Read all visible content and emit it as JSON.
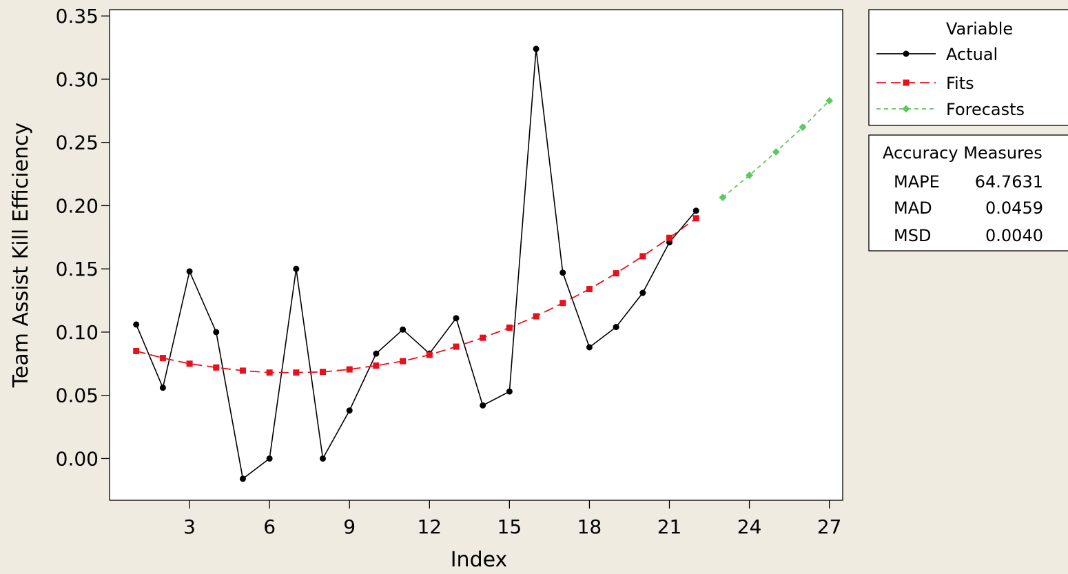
{
  "chart_data": {
    "type": "line",
    "xlabel": "Index",
    "ylabel": "Team Assist Kill Efficiency",
    "xlim": [
      0,
      27.5
    ],
    "ylim": [
      -0.033,
      0.355
    ],
    "x_ticks": [
      3,
      6,
      9,
      12,
      15,
      18,
      21,
      24,
      27
    ],
    "y_ticks": [
      0.0,
      0.05,
      0.1,
      0.15,
      0.2,
      0.25,
      0.3,
      0.35
    ],
    "y_tick_labels": [
      "0.00",
      "0.05",
      "0.10",
      "0.15",
      "0.20",
      "0.25",
      "0.30",
      "0.35"
    ],
    "grid": false,
    "legend": {
      "title": "Variable",
      "placement": "right-top",
      "entries": [
        "Actual",
        "Fits",
        "Forecasts"
      ]
    },
    "series": [
      {
        "name": "Actual",
        "color": "#000000",
        "style": "solid",
        "marker": "circle",
        "x": [
          1,
          2,
          3,
          4,
          5,
          6,
          7,
          8,
          9,
          10,
          11,
          12,
          13,
          14,
          15,
          16,
          17,
          18,
          19,
          20,
          21,
          22
        ],
        "values": [
          0.106,
          0.056,
          0.148,
          0.1,
          -0.016,
          0.0,
          0.15,
          0.0,
          0.038,
          0.083,
          0.102,
          0.083,
          0.111,
          0.042,
          0.053,
          0.324,
          0.147,
          0.088,
          0.104,
          0.131,
          0.171,
          0.196
        ]
      },
      {
        "name": "Fits",
        "color": "#e8101a",
        "style": "dashed",
        "marker": "square",
        "x": [
          1,
          2,
          3,
          4,
          5,
          6,
          7,
          8,
          9,
          10,
          11,
          12,
          13,
          14,
          15,
          16,
          17,
          18,
          19,
          20,
          21,
          22
        ],
        "values": [
          0.085,
          0.0795,
          0.075,
          0.072,
          0.0695,
          0.068,
          0.068,
          0.0685,
          0.0705,
          0.0735,
          0.077,
          0.082,
          0.0885,
          0.0955,
          0.1035,
          0.1125,
          0.123,
          0.134,
          0.1465,
          0.16,
          0.1745,
          0.19
        ]
      },
      {
        "name": "Forecasts",
        "color": "#5dc85d",
        "style": "dotted",
        "marker": "diamond",
        "x": [
          23,
          24,
          25,
          26,
          27
        ],
        "values": [
          0.2065,
          0.224,
          0.2425,
          0.262,
          0.283
        ]
      }
    ],
    "accuracy_measures": {
      "title": "Accuracy Measures",
      "rows": [
        {
          "label": "MAPE",
          "value": "64.7631"
        },
        {
          "label": "MAD",
          "value": "0.0459"
        },
        {
          "label": "MSD",
          "value": "0.0040"
        }
      ]
    }
  }
}
